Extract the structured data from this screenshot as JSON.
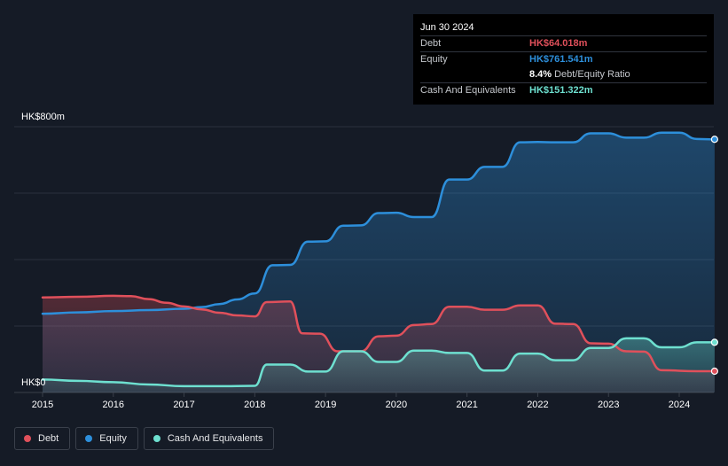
{
  "tooltip": {
    "date": "Jun 30 2024",
    "rows": {
      "debt": {
        "label": "Debt",
        "value": "HK$64.018m"
      },
      "equity": {
        "label": "Equity",
        "value": "HK$761.541m"
      },
      "ratio": {
        "percent": "8.4%",
        "label": "Debt/Equity Ratio"
      },
      "cash": {
        "label": "Cash And Equivalents",
        "value": "HK$151.322m"
      }
    }
  },
  "legend": [
    {
      "key": "debt",
      "label": "Debt"
    },
    {
      "key": "equity",
      "label": "Equity"
    },
    {
      "key": "cash",
      "label": "Cash And Equivalents"
    }
  ],
  "colors": {
    "debt": "#e0505b",
    "equity": "#2d8fdb",
    "cash": "#6ee0d0",
    "grid": "#2c323d",
    "background": "#151b26"
  },
  "chart_data": {
    "type": "area",
    "y_axis_labels": {
      "top": "HK$800m",
      "bottom": "HK$0"
    },
    "ylim": [
      0,
      800
    ],
    "xlim": [
      2015,
      2024.5
    ],
    "x_ticks": [
      "2015",
      "2016",
      "2017",
      "2018",
      "2019",
      "2020",
      "2021",
      "2022",
      "2023",
      "2024"
    ],
    "grid": true,
    "series": [
      {
        "name": "Debt",
        "key": "debt",
        "points": [
          [
            2015,
            286
          ],
          [
            2015.5,
            288
          ],
          [
            2016,
            291
          ],
          [
            2016.25,
            290
          ],
          [
            2016.5,
            281
          ],
          [
            2016.75,
            270
          ],
          [
            2017,
            259
          ],
          [
            2017.25,
            250
          ],
          [
            2017.5,
            240
          ],
          [
            2017.75,
            232
          ],
          [
            2018,
            229
          ],
          [
            2018.17,
            272
          ],
          [
            2018.5,
            274
          ],
          [
            2018.67,
            178
          ],
          [
            2018.92,
            177
          ],
          [
            2019.17,
            124
          ],
          [
            2019.5,
            124
          ],
          [
            2019.75,
            169
          ],
          [
            2020,
            171
          ],
          [
            2020.25,
            203
          ],
          [
            2020.5,
            206
          ],
          [
            2020.75,
            258
          ],
          [
            2021,
            258
          ],
          [
            2021.25,
            249
          ],
          [
            2021.5,
            249
          ],
          [
            2021.75,
            262
          ],
          [
            2022,
            262
          ],
          [
            2022.25,
            207
          ],
          [
            2022.5,
            206
          ],
          [
            2022.75,
            148
          ],
          [
            2023,
            147
          ],
          [
            2023.25,
            124
          ],
          [
            2023.5,
            123
          ],
          [
            2023.75,
            67
          ],
          [
            2024.25,
            64
          ],
          [
            2024.5,
            64
          ]
        ]
      },
      {
        "name": "Equity",
        "key": "equity",
        "points": [
          [
            2015,
            237
          ],
          [
            2015.5,
            241
          ],
          [
            2016,
            245
          ],
          [
            2016.5,
            248
          ],
          [
            2017,
            252
          ],
          [
            2017.25,
            257
          ],
          [
            2017.5,
            266
          ],
          [
            2017.75,
            280
          ],
          [
            2018,
            298
          ],
          [
            2018.25,
            383
          ],
          [
            2018.5,
            384
          ],
          [
            2018.75,
            454
          ],
          [
            2019,
            455
          ],
          [
            2019.25,
            502
          ],
          [
            2019.5,
            503
          ],
          [
            2019.75,
            540
          ],
          [
            2020,
            541
          ],
          [
            2020.25,
            528
          ],
          [
            2020.5,
            528
          ],
          [
            2020.75,
            641
          ],
          [
            2021,
            641
          ],
          [
            2021.25,
            679
          ],
          [
            2021.5,
            679
          ],
          [
            2021.75,
            753
          ],
          [
            2022,
            754
          ],
          [
            2022.25,
            753
          ],
          [
            2022.5,
            753
          ],
          [
            2022.75,
            780
          ],
          [
            2023,
            780
          ],
          [
            2023.25,
            767
          ],
          [
            2023.5,
            767
          ],
          [
            2023.75,
            782
          ],
          [
            2024,
            782
          ],
          [
            2024.25,
            763
          ],
          [
            2024.5,
            762
          ]
        ]
      },
      {
        "name": "Cash And Equivalents",
        "key": "cash",
        "points": [
          [
            2015,
            39
          ],
          [
            2015.5,
            35
          ],
          [
            2016,
            31
          ],
          [
            2016.5,
            24
          ],
          [
            2017,
            19
          ],
          [
            2017.5,
            19
          ],
          [
            2018,
            20
          ],
          [
            2018.17,
            84
          ],
          [
            2018.5,
            84
          ],
          [
            2018.75,
            63
          ],
          [
            2019,
            63
          ],
          [
            2019.25,
            124
          ],
          [
            2019.5,
            124
          ],
          [
            2019.75,
            92
          ],
          [
            2020,
            92
          ],
          [
            2020.25,
            126
          ],
          [
            2020.5,
            126
          ],
          [
            2020.75,
            119
          ],
          [
            2021,
            119
          ],
          [
            2021.25,
            66
          ],
          [
            2021.5,
            66
          ],
          [
            2021.75,
            117
          ],
          [
            2022,
            117
          ],
          [
            2022.25,
            97
          ],
          [
            2022.5,
            97
          ],
          [
            2022.75,
            134
          ],
          [
            2023,
            134
          ],
          [
            2023.25,
            163
          ],
          [
            2023.5,
            163
          ],
          [
            2023.75,
            136
          ],
          [
            2024,
            136
          ],
          [
            2024.25,
            151
          ],
          [
            2024.5,
            151
          ]
        ]
      }
    ]
  }
}
